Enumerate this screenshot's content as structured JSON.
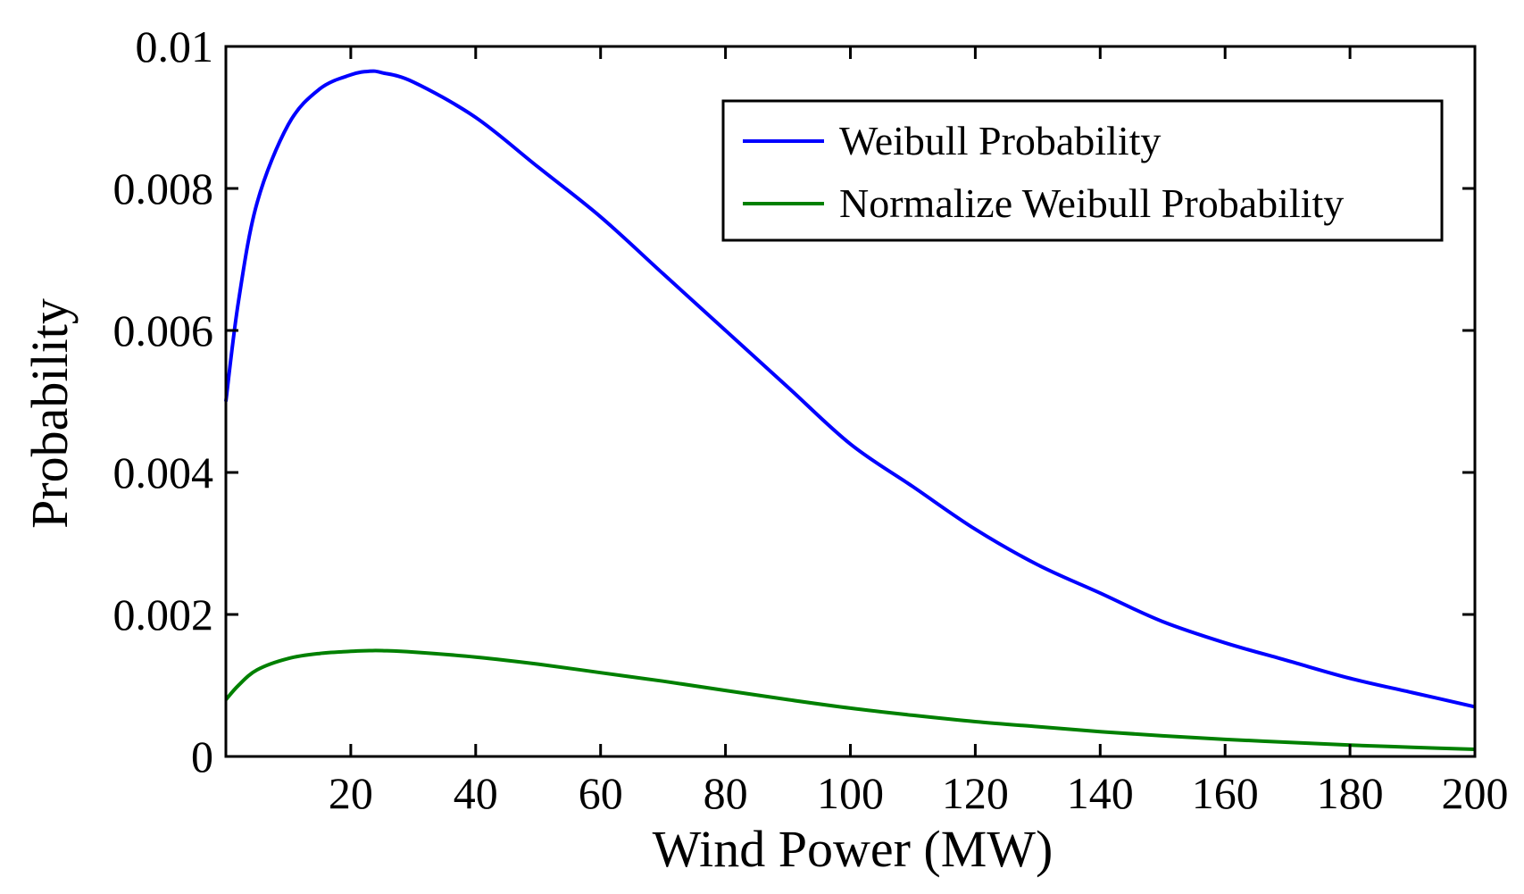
{
  "chart_data": {
    "type": "line",
    "title": "",
    "xlabel": "Wind Power (MW)",
    "ylabel": "Probability",
    "xlim": [
      0,
      200
    ],
    "ylim": [
      0,
      0.01
    ],
    "xticks": [
      20,
      40,
      60,
      80,
      100,
      120,
      140,
      160,
      180,
      200
    ],
    "xtick_labels": [
      "20",
      "40",
      "60",
      "80",
      "100",
      "120",
      "140",
      "160",
      "180",
      "200"
    ],
    "yticks": [
      0,
      0.002,
      0.004,
      0.006,
      0.008,
      0.01
    ],
    "ytick_labels": [
      "0",
      "0.002",
      "0.004",
      "0.006",
      "0.008",
      "0.01"
    ],
    "grid": false,
    "legend_position": "top-right",
    "x": [
      0,
      2,
      5,
      10,
      15,
      20,
      23,
      25,
      30,
      40,
      50,
      60,
      70,
      80,
      90,
      100,
      110,
      120,
      130,
      140,
      150,
      160,
      170,
      180,
      190,
      200
    ],
    "series": [
      {
        "name": "Weibull Probability",
        "color": "#0000ff",
        "values": [
          0.005,
          0.0064,
          0.0078,
          0.0089,
          0.0094,
          0.0096,
          0.00965,
          0.00963,
          0.0095,
          0.009,
          0.0083,
          0.0076,
          0.0068,
          0.006,
          0.0052,
          0.0044,
          0.0038,
          0.0032,
          0.0027,
          0.0023,
          0.0019,
          0.0016,
          0.00135,
          0.0011,
          0.0009,
          0.0007
        ]
      },
      {
        "name": "Normalize Weibull Probability",
        "color": "#008000",
        "values": [
          0.0008,
          0.001,
          0.00122,
          0.00138,
          0.00145,
          0.00148,
          0.00149,
          0.00149,
          0.00147,
          0.0014,
          0.0013,
          0.00118,
          0.00106,
          0.00093,
          0.0008,
          0.00068,
          0.00058,
          0.00049,
          0.00042,
          0.00035,
          0.00029,
          0.00024,
          0.0002,
          0.00016,
          0.00013,
          0.0001
        ]
      }
    ]
  }
}
